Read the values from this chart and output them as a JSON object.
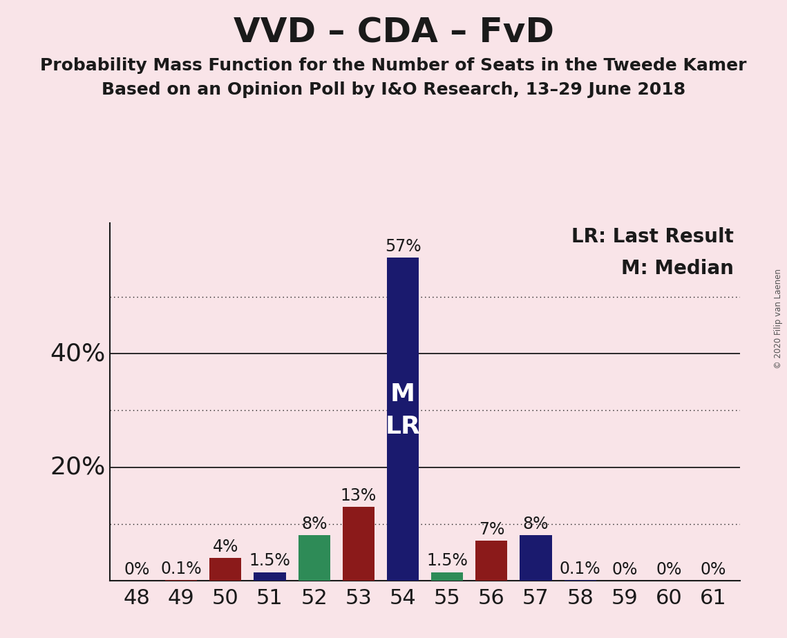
{
  "title": "VVD – CDA – FvD",
  "subtitle1": "Probability Mass Function for the Number of Seats in the Tweede Kamer",
  "subtitle2": "Based on an Opinion Poll by I&O Research, 13–29 June 2018",
  "copyright": "© 2020 Filip van Laenen",
  "legend_lr": "LR: Last Result",
  "legend_m": "M: Median",
  "background_color": "#f9e4e8",
  "categories": [
    48,
    49,
    50,
    51,
    52,
    53,
    54,
    55,
    56,
    57,
    58,
    59,
    60,
    61
  ],
  "values": [
    0.0,
    0.1,
    4.0,
    1.5,
    8.0,
    13.0,
    57.0,
    1.5,
    7.0,
    8.0,
    0.1,
    0.0,
    0.0,
    0.0
  ],
  "labels": [
    "0%",
    "0.1%",
    "4%",
    "1.5%",
    "8%",
    "13%",
    "57%",
    "1.5%",
    "7%",
    "8%",
    "0.1%",
    "0%",
    "0%",
    "0%"
  ],
  "bar_colors": [
    "#8b1a1a",
    "#8b1a1a",
    "#8b1a1a",
    "#1a1a6e",
    "#2e8b57",
    "#8b1a1a",
    "#1a1a6e",
    "#2e8b57",
    "#8b1a1a",
    "#1a1a6e",
    "#1a1a6e",
    "#1a1a6e",
    "#1a1a6e",
    "#1a1a6e"
  ],
  "median_bar_idx": 6,
  "median_label_text": "M\nLR",
  "median_label_color": "#ffffff",
  "ylim": [
    0,
    63
  ],
  "solid_ytick_values": [
    20,
    40
  ],
  "solid_ytick_labels": [
    "20%",
    "40%"
  ],
  "dotted_ytick_values": [
    10,
    30,
    50
  ],
  "title_fontsize": 36,
  "subtitle_fontsize": 18,
  "tick_fontsize": 22,
  "ylabel_fontsize": 26,
  "legend_fontsize": 20,
  "bar_label_fontsize": 17,
  "median_label_fontsize": 26,
  "axis_label_color": "#1a1a1a",
  "spine_color": "#1a1a1a",
  "bar_width": 0.72
}
